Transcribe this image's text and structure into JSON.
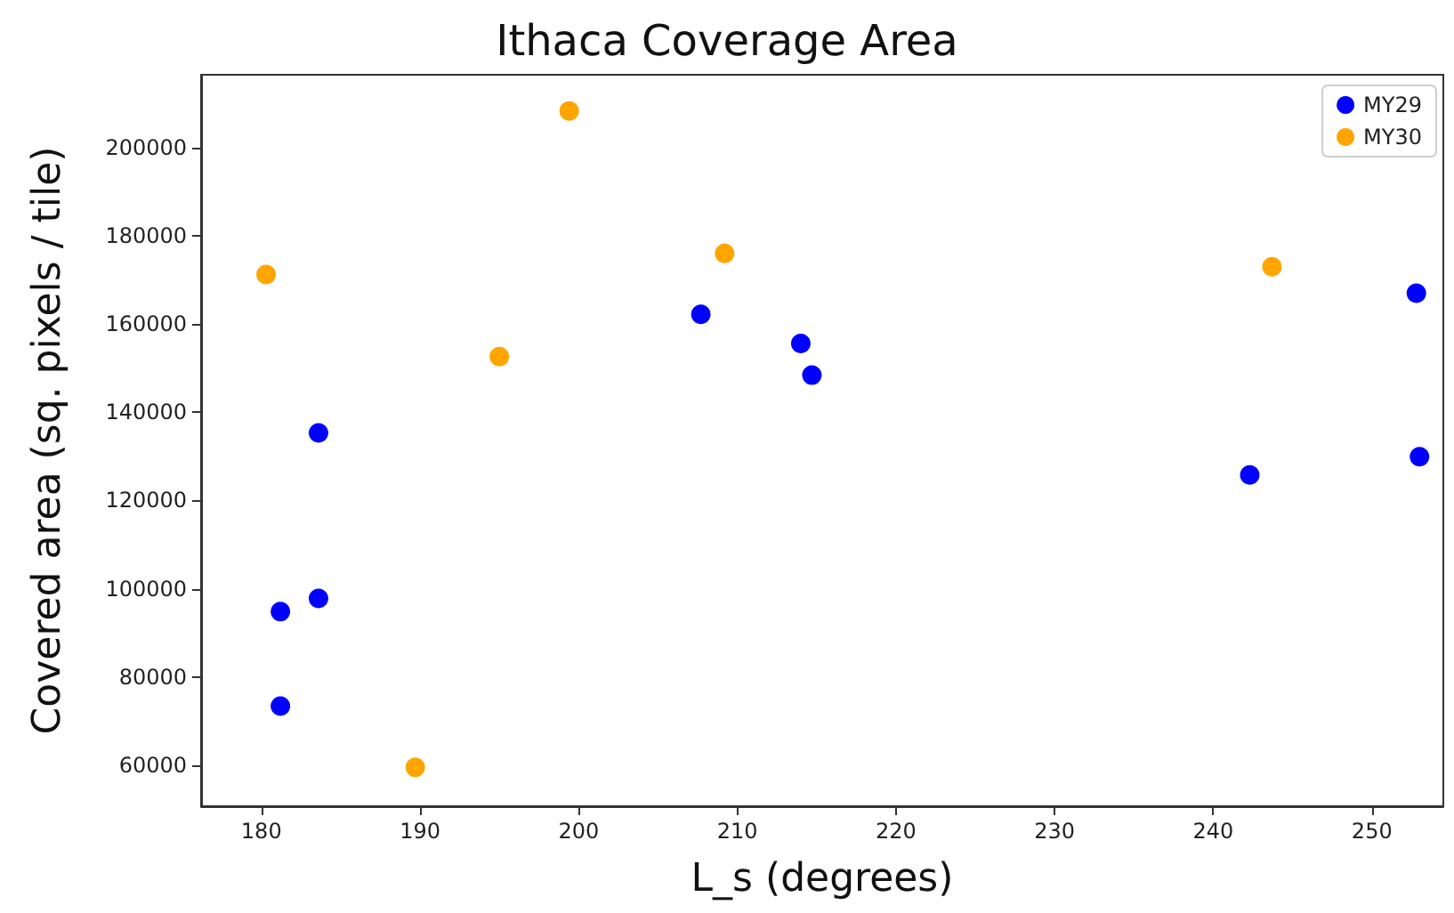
{
  "chart_data": {
    "type": "scatter",
    "title": "Ithaca Coverage Area",
    "xlabel": "L_s (degrees)",
    "ylabel": "Covered area (sq. pixels / tile)",
    "series": [
      {
        "name": "MY29",
        "color": "#0000ff",
        "x": [
          181.2,
          181.2,
          183.6,
          183.6,
          207.7,
          214,
          214.7,
          242.3,
          252.8,
          253
        ],
        "values": [
          73400,
          94800,
          97800,
          135300,
          162200,
          155600,
          148400,
          125800,
          167000,
          129900
        ]
      },
      {
        "name": "MY30",
        "color": "#ffa500",
        "x": [
          180.3,
          189.7,
          195,
          199.4,
          209.2,
          243.7
        ],
        "values": [
          171200,
          59500,
          152600,
          208300,
          176000,
          173000
        ]
      }
    ],
    "xlim": [
      176.2,
      254.5
    ],
    "xticks": [
      180,
      190,
      200,
      210,
      220,
      230,
      240,
      250
    ],
    "ylim": [
      50700,
      216500
    ],
    "yticks": [
      60000,
      80000,
      100000,
      120000,
      140000,
      160000,
      180000,
      200000
    ],
    "grid": false,
    "legend": "top right",
    "marker": "circle"
  }
}
